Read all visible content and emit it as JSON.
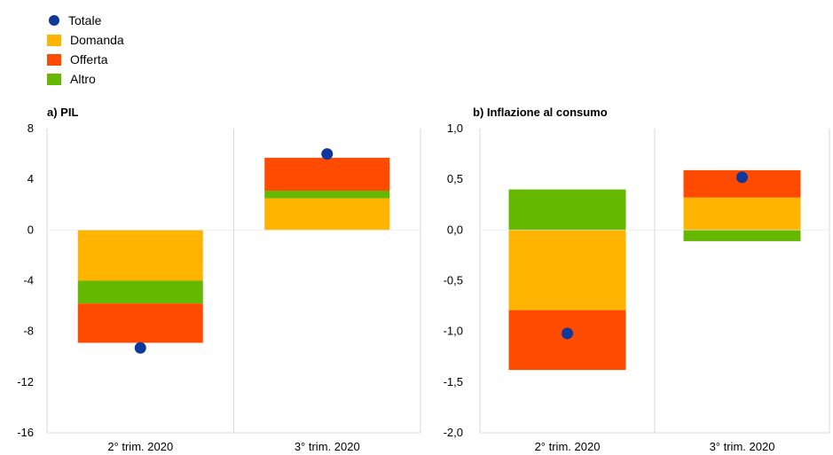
{
  "legend": [
    {
      "label": "Totale",
      "color": "#10389A",
      "shape": "dot"
    },
    {
      "label": "Domanda",
      "color": "#FFB400",
      "shape": "square"
    },
    {
      "label": "Offerta",
      "color": "#FF4B00",
      "shape": "square"
    },
    {
      "label": "Altro",
      "color": "#65B800",
      "shape": "square"
    }
  ],
  "chart_data": [
    {
      "type": "bar",
      "stacked": true,
      "title": "a) PIL",
      "categories": [
        "2° trim. 2020",
        "3° trim. 2020"
      ],
      "ylim": [
        -16,
        8
      ],
      "yticks": [
        8,
        4,
        0,
        -4,
        -8,
        -12,
        -16
      ],
      "ytick_labels": [
        "8",
        "4",
        "0",
        "-4",
        "-8",
        "-12",
        "-16"
      ],
      "series": [
        {
          "name": "Domanda",
          "color": "#FFB400",
          "values": [
            -4.0,
            2.5
          ]
        },
        {
          "name": "Altro",
          "color": "#65B800",
          "values": [
            -1.8,
            0.6
          ]
        },
        {
          "name": "Offerta",
          "color": "#FF4B00",
          "values": [
            -3.1,
            2.6
          ]
        }
      ],
      "totals": {
        "name": "Totale",
        "color": "#10389A",
        "values": [
          -9.3,
          6.0
        ]
      },
      "grid": "vertical"
    },
    {
      "type": "bar",
      "stacked": true,
      "title": "b) Inflazione al consumo",
      "categories": [
        "2° trim. 2020",
        "3° trim. 2020"
      ],
      "ylim": [
        -2.0,
        1.0
      ],
      "yticks": [
        1.0,
        0.5,
        0.0,
        -0.5,
        -1.0,
        -1.5,
        -2.0
      ],
      "ytick_labels": [
        "1,0",
        "0,5",
        "0,0",
        "-0,5",
        "-1,0",
        "-1,5",
        "-2,0"
      ],
      "series": [
        {
          "name": "Domanda",
          "color": "#FFB400",
          "values": [
            -0.79,
            0.32
          ]
        },
        {
          "name": "Altro",
          "color": "#65B800",
          "values": [
            0.4,
            -0.11
          ]
        },
        {
          "name": "Offerta",
          "color": "#FF4B00",
          "values": [
            -0.59,
            0.27
          ]
        }
      ],
      "totals": {
        "name": "Totale",
        "color": "#10389A",
        "values": [
          -1.02,
          0.52
        ]
      },
      "grid": "vertical"
    }
  ]
}
